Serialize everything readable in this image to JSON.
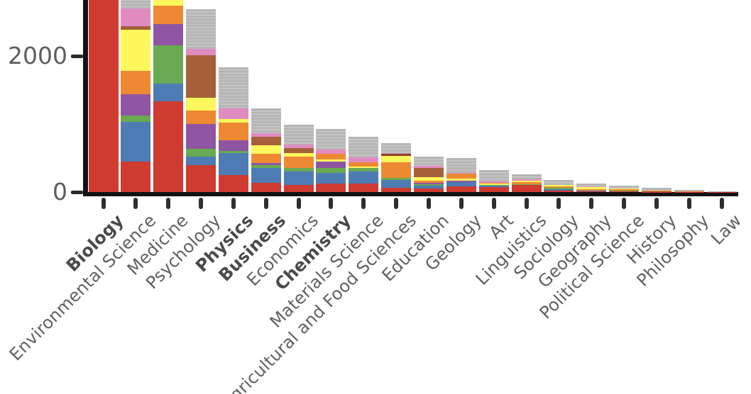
{
  "chart_data": {
    "type": "bar",
    "subtype": "stacked-bar",
    "title": "",
    "xlabel": "",
    "ylabel": "",
    "grid": false,
    "legend": "none",
    "top_cropped": true,
    "y_axis": {
      "visible_max": 2824,
      "ticks": [
        {
          "value": 0,
          "label": "0"
        },
        {
          "value": 2000,
          "label": "2000"
        }
      ]
    },
    "palette": {
      "red": "#cf3a31",
      "blue": "#4d7cb5",
      "green": "#69aa52",
      "purple": "#8f55a2",
      "orange": "#ee8933",
      "yellow": "#fbf75c",
      "brown": "#a5603a",
      "pink": "#e18cc1",
      "maroon": "#993b2b",
      "gray": "#b6b6b6"
    },
    "categories": [
      "Biology",
      "Environmental Science",
      "Medicine",
      "Psychology",
      "Physics",
      "Business",
      "Economics",
      "Chemistry",
      "Materials Science",
      "Agricultural and Food Sciences",
      "Education",
      "Geology",
      "Art",
      "Linguistics",
      "Sociology",
      "Geography",
      "Political Science",
      "History",
      "Philosophy",
      "Law"
    ],
    "bold_categories": [
      "Biology",
      "Physics",
      "Business",
      "Chemistry"
    ],
    "bars": [
      {
        "category": "Biology",
        "bold": true,
        "cropped": true,
        "segments": [
          {
            "color": "red",
            "value": 3000
          }
        ]
      },
      {
        "category": "Environmental Science",
        "bold": false,
        "cropped": true,
        "segments": [
          {
            "color": "red",
            "value": 450
          },
          {
            "color": "blue",
            "value": 580
          },
          {
            "color": "green",
            "value": 100
          },
          {
            "color": "purple",
            "value": 310
          },
          {
            "color": "orange",
            "value": 340
          },
          {
            "color": "yellow",
            "value": 610
          },
          {
            "color": "brown",
            "value": 50
          },
          {
            "color": "pink",
            "value": 260
          },
          {
            "color": "gray",
            "value": 250
          }
        ]
      },
      {
        "category": "Medicine",
        "bold": false,
        "cropped": true,
        "segments": [
          {
            "color": "red",
            "value": 1330
          },
          {
            "color": "blue",
            "value": 260
          },
          {
            "color": "green",
            "value": 570
          },
          {
            "color": "purple",
            "value": 310
          },
          {
            "color": "orange",
            "value": 270
          },
          {
            "color": "yellow",
            "value": 130
          }
        ]
      },
      {
        "category": "Psychology",
        "bold": false,
        "cropped": false,
        "segments": [
          {
            "color": "red",
            "value": 400
          },
          {
            "color": "blue",
            "value": 120
          },
          {
            "color": "green",
            "value": 120
          },
          {
            "color": "purple",
            "value": 365
          },
          {
            "color": "orange",
            "value": 190
          },
          {
            "color": "yellow",
            "value": 190
          },
          {
            "color": "brown",
            "value": 625
          },
          {
            "color": "pink",
            "value": 95
          },
          {
            "color": "gray",
            "value": 585
          }
        ]
      },
      {
        "category": "Physics",
        "bold": true,
        "cropped": false,
        "segments": [
          {
            "color": "red",
            "value": 250
          },
          {
            "color": "blue",
            "value": 320
          },
          {
            "color": "green",
            "value": 35
          },
          {
            "color": "purple",
            "value": 155
          },
          {
            "color": "orange",
            "value": 260
          },
          {
            "color": "yellow",
            "value": 50
          },
          {
            "color": "pink",
            "value": 155
          },
          {
            "color": "gray",
            "value": 605
          }
        ]
      },
      {
        "category": "Business",
        "bold": true,
        "cropped": false,
        "segments": [
          {
            "color": "red",
            "value": 135
          },
          {
            "color": "blue",
            "value": 220
          },
          {
            "color": "green",
            "value": 40
          },
          {
            "color": "purple",
            "value": 30
          },
          {
            "color": "orange",
            "value": 135
          },
          {
            "color": "yellow",
            "value": 125
          },
          {
            "color": "brown",
            "value": 125
          },
          {
            "color": "pink",
            "value": 60
          },
          {
            "color": "gray",
            "value": 365
          }
        ]
      },
      {
        "category": "Economics",
        "bold": false,
        "cropped": false,
        "segments": [
          {
            "color": "red",
            "value": 105
          },
          {
            "color": "blue",
            "value": 200
          },
          {
            "color": "green",
            "value": 50
          },
          {
            "color": "orange",
            "value": 165
          },
          {
            "color": "yellow",
            "value": 50
          },
          {
            "color": "brown",
            "value": 75
          },
          {
            "color": "pink",
            "value": 50
          },
          {
            "color": "gray",
            "value": 300
          }
        ]
      },
      {
        "category": "Chemistry",
        "bold": true,
        "cropped": false,
        "segments": [
          {
            "color": "red",
            "value": 125
          },
          {
            "color": "blue",
            "value": 160
          },
          {
            "color": "green",
            "value": 65
          },
          {
            "color": "purple",
            "value": 95
          },
          {
            "color": "yellow",
            "value": 30
          },
          {
            "color": "orange",
            "value": 85
          },
          {
            "color": "pink",
            "value": 70
          },
          {
            "color": "gray",
            "value": 295
          }
        ]
      },
      {
        "category": "Materials Science",
        "bold": false,
        "cropped": false,
        "segments": [
          {
            "color": "red",
            "value": 125
          },
          {
            "color": "blue",
            "value": 175
          },
          {
            "color": "green",
            "value": 50
          },
          {
            "color": "yellow",
            "value": 30
          },
          {
            "color": "orange",
            "value": 60
          },
          {
            "color": "pink",
            "value": 70
          },
          {
            "color": "gray",
            "value": 300
          }
        ]
      },
      {
        "category": "Agricultural and Food Sciences",
        "bold": false,
        "cropped": false,
        "segments": [
          {
            "color": "red",
            "value": 60
          },
          {
            "color": "blue",
            "value": 115
          },
          {
            "color": "green",
            "value": 30
          },
          {
            "color": "orange",
            "value": 230
          },
          {
            "color": "yellow",
            "value": 100
          },
          {
            "color": "maroon",
            "value": 30
          },
          {
            "color": "gray",
            "value": 155
          }
        ]
      },
      {
        "category": "Education",
        "bold": false,
        "cropped": false,
        "segments": [
          {
            "color": "red",
            "value": 55
          },
          {
            "color": "blue",
            "value": 40
          },
          {
            "color": "green",
            "value": 15
          },
          {
            "color": "purple",
            "value": 30
          },
          {
            "color": "orange",
            "value": 25
          },
          {
            "color": "yellow",
            "value": 50
          },
          {
            "color": "brown",
            "value": 145
          },
          {
            "color": "pink",
            "value": 30
          },
          {
            "color": "gray",
            "value": 130
          }
        ]
      },
      {
        "category": "Geology",
        "bold": false,
        "cropped": false,
        "segments": [
          {
            "color": "red",
            "value": 85
          },
          {
            "color": "blue",
            "value": 65
          },
          {
            "color": "purple",
            "value": 20
          },
          {
            "color": "yellow",
            "value": 27
          },
          {
            "color": "orange",
            "value": 70
          },
          {
            "color": "pink",
            "value": 20
          },
          {
            "color": "gray",
            "value": 215
          }
        ]
      },
      {
        "category": "Art",
        "bold": false,
        "cropped": false,
        "segments": [
          {
            "color": "red",
            "value": 75
          },
          {
            "color": "blue",
            "value": 15
          },
          {
            "color": "green",
            "value": 15
          },
          {
            "color": "yellow",
            "value": 20
          },
          {
            "color": "orange",
            "value": 15
          },
          {
            "color": "pink",
            "value": 15
          },
          {
            "color": "gray",
            "value": 170
          }
        ]
      },
      {
        "category": "Linguistics",
        "bold": false,
        "cropped": false,
        "segments": [
          {
            "color": "red",
            "value": 100
          },
          {
            "color": "green",
            "value": 15
          },
          {
            "color": "orange",
            "value": 30
          },
          {
            "color": "yellow",
            "value": 25
          },
          {
            "color": "pink",
            "value": 20
          },
          {
            "color": "gray",
            "value": 70
          }
        ]
      },
      {
        "category": "Sociology",
        "bold": false,
        "cropped": false,
        "segments": [
          {
            "color": "red",
            "value": 20
          },
          {
            "color": "blue",
            "value": 20
          },
          {
            "color": "green",
            "value": 20
          },
          {
            "color": "orange",
            "value": 22
          },
          {
            "color": "yellow",
            "value": 24
          },
          {
            "color": "gray",
            "value": 68
          }
        ]
      },
      {
        "category": "Geography",
        "bold": false,
        "cropped": false,
        "segments": [
          {
            "color": "red",
            "value": 12
          },
          {
            "color": "blue",
            "value": 12
          },
          {
            "color": "orange",
            "value": 22
          },
          {
            "color": "yellow",
            "value": 27
          },
          {
            "color": "pink",
            "value": 12
          },
          {
            "color": "gray",
            "value": 40
          }
        ]
      },
      {
        "category": "Political Science",
        "bold": false,
        "cropped": false,
        "segments": [
          {
            "color": "red",
            "value": 8
          },
          {
            "color": "green",
            "value": 18
          },
          {
            "color": "orange",
            "value": 15
          },
          {
            "color": "yellow",
            "value": 15
          },
          {
            "color": "gray",
            "value": 36
          }
        ]
      },
      {
        "category": "History",
        "bold": false,
        "cropped": false,
        "segments": [
          {
            "color": "red",
            "value": 5
          },
          {
            "color": "brown",
            "value": 8
          },
          {
            "color": "orange",
            "value": 10
          },
          {
            "color": "gray",
            "value": 43
          }
        ]
      },
      {
        "category": "Philosophy",
        "bold": false,
        "cropped": false,
        "segments": [
          {
            "color": "red",
            "value": 4
          },
          {
            "color": "orange",
            "value": 4
          },
          {
            "color": "gray",
            "value": 28
          }
        ]
      },
      {
        "category": "Law",
        "bold": false,
        "cropped": false,
        "segments": [
          {
            "color": "red",
            "value": 3
          },
          {
            "color": "gray",
            "value": 9
          }
        ]
      }
    ]
  }
}
